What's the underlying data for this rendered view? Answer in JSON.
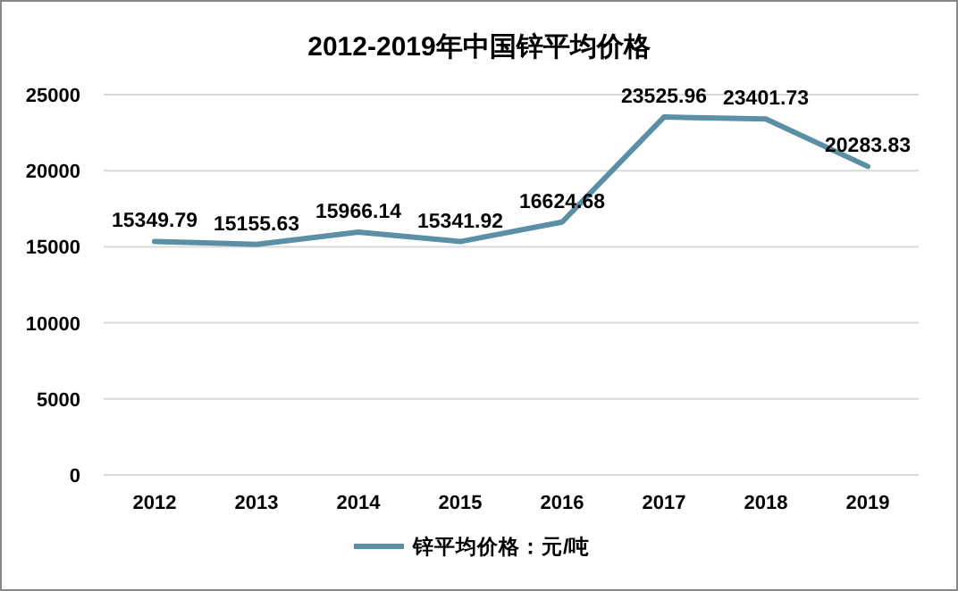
{
  "chart_data": {
    "type": "line",
    "title": "2012-2019年中国锌平均价格",
    "categories": [
      "2012",
      "2013",
      "2014",
      "2015",
      "2016",
      "2017",
      "2018",
      "2019"
    ],
    "series": [
      {
        "name": "锌平均价格：元/吨",
        "color": "#5b8fa6",
        "values": [
          15349.79,
          15155.63,
          15966.14,
          15341.92,
          16624.68,
          23525.96,
          23401.73,
          20283.83
        ]
      }
    ],
    "ylim": [
      0,
      25000
    ],
    "yticks": [
      0,
      5000,
      10000,
      15000,
      20000,
      25000
    ],
    "grid": "y",
    "legend": "bottom",
    "data_labels": true
  }
}
